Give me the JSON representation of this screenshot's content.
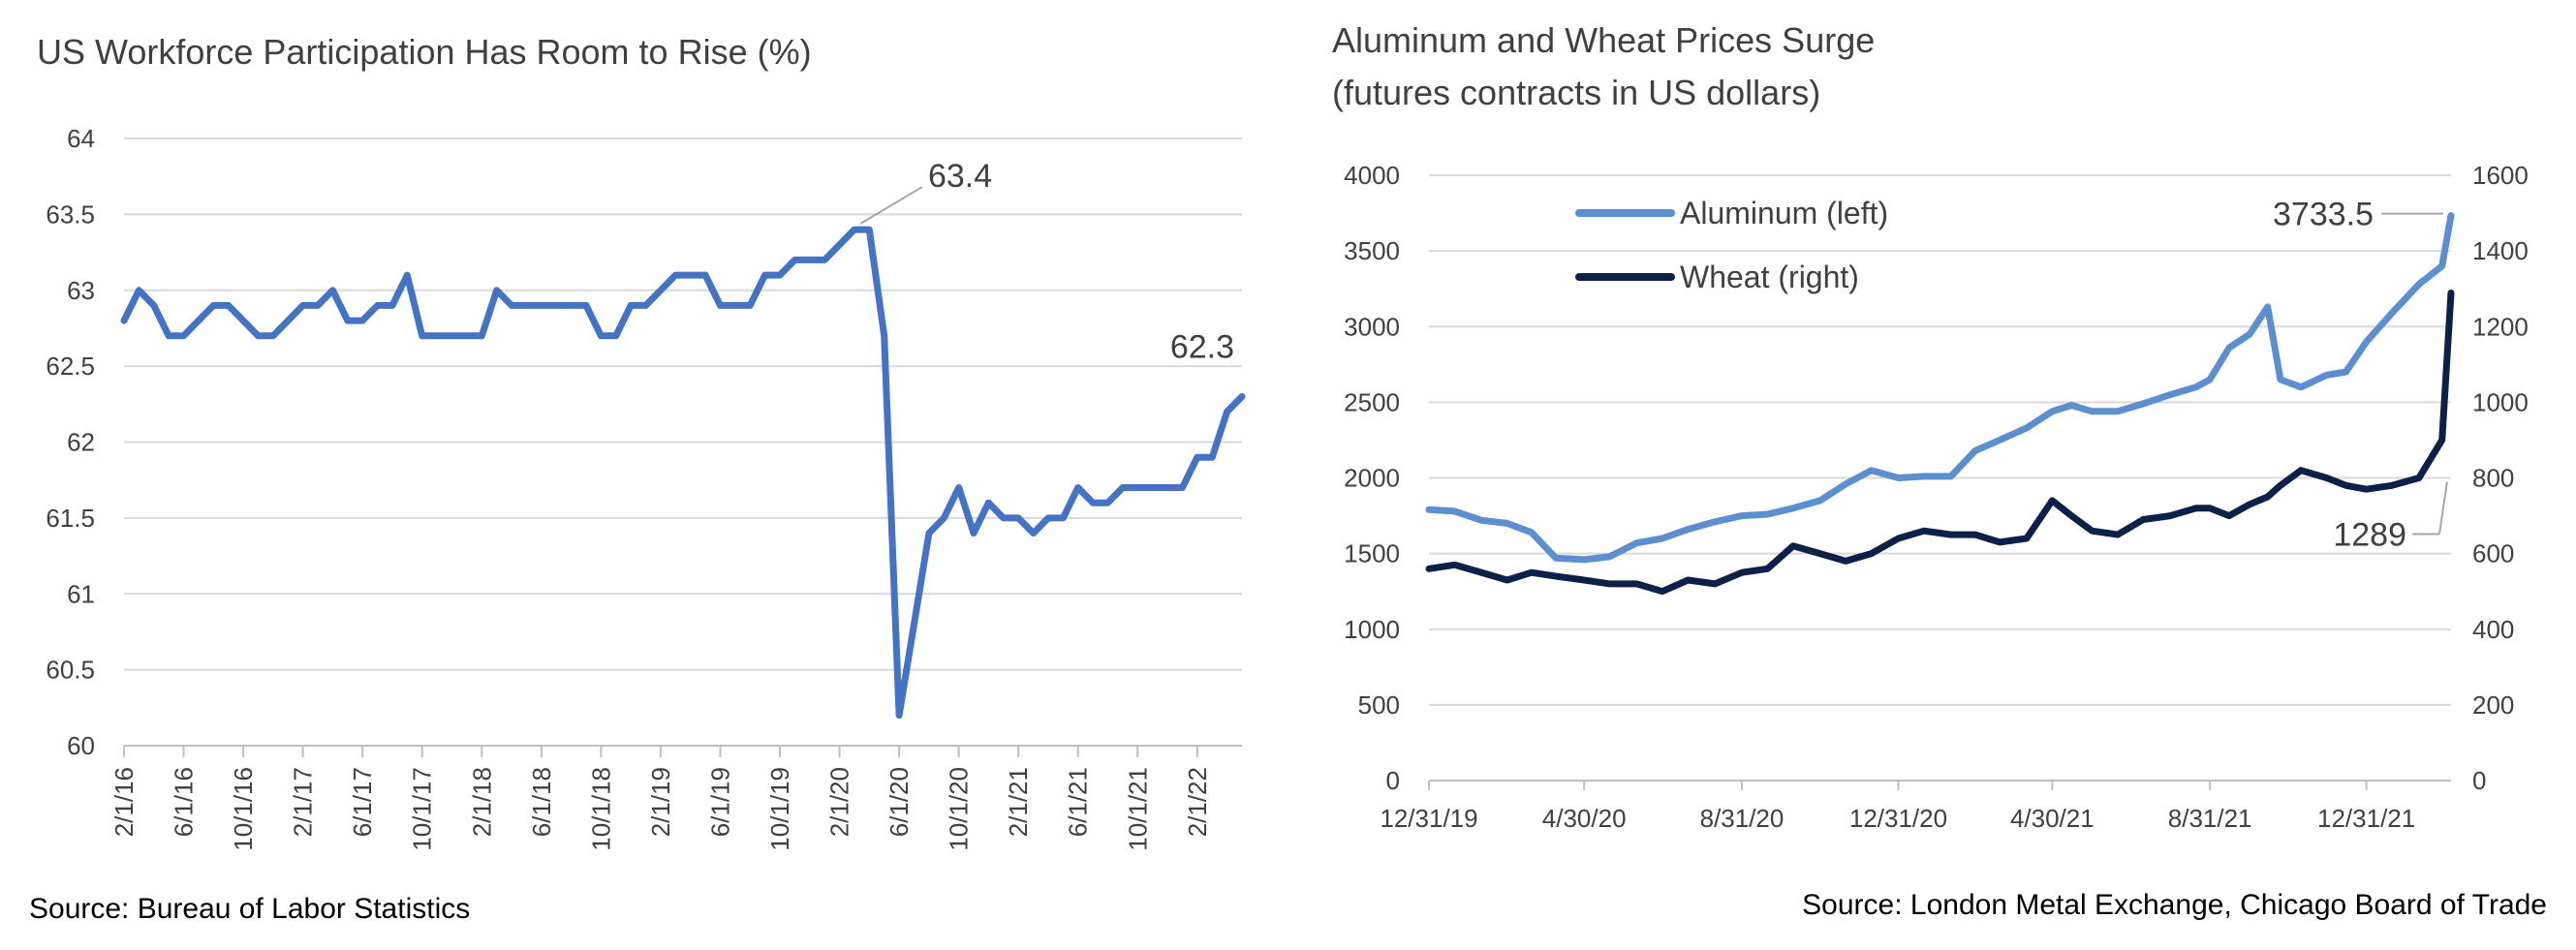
{
  "chart_data": [
    {
      "type": "line",
      "title": "US Workforce Participation Has Room to Rise (%)",
      "source": "Source: Bureau of Labor Statistics",
      "ylim": [
        60,
        64
      ],
      "yticks": [
        "60",
        "60.5",
        "61",
        "61.5",
        "62",
        "62.5",
        "63",
        "63.5",
        "64"
      ],
      "xtick_labels": [
        "2/1/16",
        "6/1/16",
        "10/1/16",
        "2/1/17",
        "6/1/17",
        "10/1/17",
        "2/1/18",
        "6/1/18",
        "10/1/18",
        "2/1/19",
        "6/1/19",
        "10/1/19",
        "2/1/20",
        "6/1/20",
        "10/1/20",
        "2/1/21",
        "6/1/21",
        "10/1/21",
        "2/1/22"
      ],
      "grid": true,
      "color": "#4472c4",
      "start": "2/1/16",
      "series": [
        {
          "values": [
            62.8,
            63.0,
            62.9,
            62.7,
            62.7,
            62.8,
            62.9,
            62.9,
            62.8,
            62.7,
            62.7,
            62.8,
            62.9,
            62.9,
            63.0,
            62.8,
            62.8,
            62.9,
            62.9,
            63.1,
            62.7,
            62.7,
            62.7,
            62.7,
            62.7,
            63.0,
            62.9,
            62.9,
            62.9,
            62.9,
            62.9,
            62.9,
            62.7,
            62.7,
            62.9,
            62.9,
            63.0,
            63.1,
            63.1,
            63.1,
            62.9,
            62.9,
            62.9,
            63.1,
            63.1,
            63.2,
            63.2,
            63.2,
            63.3,
            63.4,
            63.4,
            62.7,
            60.2,
            60.8,
            61.4,
            61.5,
            61.7,
            61.4,
            61.6,
            61.5,
            61.5,
            61.4,
            61.5,
            61.5,
            61.7,
            61.6,
            61.6,
            61.7,
            61.7,
            61.7,
            61.7,
            61.7,
            61.9,
            61.9,
            62.2,
            62.3
          ]
        }
      ],
      "annotations": [
        {
          "label": "63.4",
          "value": 63.4
        },
        {
          "label": "62.3",
          "value": 62.3
        }
      ]
    },
    {
      "type": "line",
      "title_lines": [
        "Aluminum and Wheat Prices Surge",
        "(futures contracts in US dollars)"
      ],
      "source": "Source: London Metal Exchange, Chicago Board of Trade",
      "ylim_left": [
        0,
        4000
      ],
      "ylim_right": [
        0,
        1600
      ],
      "yticks_left": [
        "0",
        "500",
        "1000",
        "1500",
        "2000",
        "2500",
        "3000",
        "3500",
        "4000"
      ],
      "yticks_right": [
        "0",
        "200",
        "400",
        "600",
        "800",
        "1000",
        "1200",
        "1400",
        "1600"
      ],
      "xtick_labels": [
        "12/31/19",
        "4/30/20",
        "8/31/20",
        "12/31/20",
        "4/30/21",
        "8/31/21",
        "12/31/21"
      ],
      "xlim": [
        "12/31/19",
        "3/7/22"
      ],
      "grid": true,
      "legend_position": "top-left",
      "series": [
        {
          "name": "Aluminum (left)",
          "axis": "left",
          "color": "#5b8fd0",
          "points": [
            [
              "12/31/19",
              1790
            ],
            [
              "1/20/20",
              1780
            ],
            [
              "2/10/20",
              1720
            ],
            [
              "3/1/20",
              1700
            ],
            [
              "3/20/20",
              1640
            ],
            [
              "4/8/20",
              1470
            ],
            [
              "4/30/20",
              1460
            ],
            [
              "5/20/20",
              1480
            ],
            [
              "6/10/20",
              1570
            ],
            [
              "6/30/20",
              1600
            ],
            [
              "7/20/20",
              1660
            ],
            [
              "8/10/20",
              1710
            ],
            [
              "8/31/20",
              1750
            ],
            [
              "9/20/20",
              1760
            ],
            [
              "10/10/20",
              1800
            ],
            [
              "10/31/20",
              1850
            ],
            [
              "11/20/20",
              1960
            ],
            [
              "12/10/20",
              2050
            ],
            [
              "12/31/20",
              2000
            ],
            [
              "1/20/21",
              2010
            ],
            [
              "2/10/21",
              2010
            ],
            [
              "3/1/21",
              2180
            ],
            [
              "3/20/21",
              2250
            ],
            [
              "4/10/21",
              2330
            ],
            [
              "4/30/21",
              2440
            ],
            [
              "5/15/21",
              2480
            ],
            [
              "5/31/21",
              2440
            ],
            [
              "6/20/21",
              2440
            ],
            [
              "7/10/21",
              2490
            ],
            [
              "7/31/21",
              2550
            ],
            [
              "8/20/21",
              2600
            ],
            [
              "8/31/21",
              2650
            ],
            [
              "9/15/21",
              2860
            ],
            [
              "10/1/21",
              2950
            ],
            [
              "10/15/21",
              3130
            ],
            [
              "10/25/21",
              2650
            ],
            [
              "11/10/21",
              2600
            ],
            [
              "11/30/21",
              2680
            ],
            [
              "12/15/21",
              2700
            ],
            [
              "12/31/21",
              2900
            ],
            [
              "1/20/22",
              3090
            ],
            [
              "2/10/22",
              3280
            ],
            [
              "2/28/22",
              3400
            ],
            [
              "3/7/22",
              3733.5
            ]
          ]
        },
        {
          "name": "Wheat (right)",
          "axis": "right",
          "color": "#0d2148",
          "points": [
            [
              "12/31/19",
              560
            ],
            [
              "1/20/20",
              570
            ],
            [
              "2/10/20",
              550
            ],
            [
              "3/1/20",
              530
            ],
            [
              "3/20/20",
              550
            ],
            [
              "4/8/20",
              540
            ],
            [
              "4/30/20",
              530
            ],
            [
              "5/20/20",
              520
            ],
            [
              "6/10/20",
              520
            ],
            [
              "6/30/20",
              500
            ],
            [
              "7/20/20",
              530
            ],
            [
              "8/10/20",
              520
            ],
            [
              "8/31/20",
              550
            ],
            [
              "9/20/20",
              560
            ],
            [
              "10/10/20",
              620
            ],
            [
              "10/31/20",
              600
            ],
            [
              "11/20/20",
              580
            ],
            [
              "12/10/20",
              600
            ],
            [
              "12/31/20",
              640
            ],
            [
              "1/20/21",
              660
            ],
            [
              "2/10/21",
              650
            ],
            [
              "3/1/21",
              650
            ],
            [
              "3/20/21",
              630
            ],
            [
              "4/10/21",
              640
            ],
            [
              "4/30/21",
              740
            ],
            [
              "5/15/21",
              700
            ],
            [
              "5/31/21",
              660
            ],
            [
              "6/20/21",
              650
            ],
            [
              "7/10/21",
              690
            ],
            [
              "7/31/21",
              700
            ],
            [
              "8/20/21",
              720
            ],
            [
              "8/31/21",
              720
            ],
            [
              "9/15/21",
              700
            ],
            [
              "10/1/21",
              730
            ],
            [
              "10/15/21",
              750
            ],
            [
              "10/25/21",
              780
            ],
            [
              "11/10/21",
              820
            ],
            [
              "11/30/21",
              800
            ],
            [
              "12/15/21",
              780
            ],
            [
              "12/31/21",
              770
            ],
            [
              "1/20/22",
              780
            ],
            [
              "2/10/22",
              800
            ],
            [
              "2/28/22",
              900
            ],
            [
              "3/7/22",
              1289
            ]
          ]
        }
      ],
      "annotations": [
        {
          "label": "3733.5",
          "series": "Aluminum (left)",
          "value": 3733.5
        },
        {
          "label": "1289",
          "series": "Wheat (right)",
          "value": 1289
        }
      ]
    }
  ]
}
